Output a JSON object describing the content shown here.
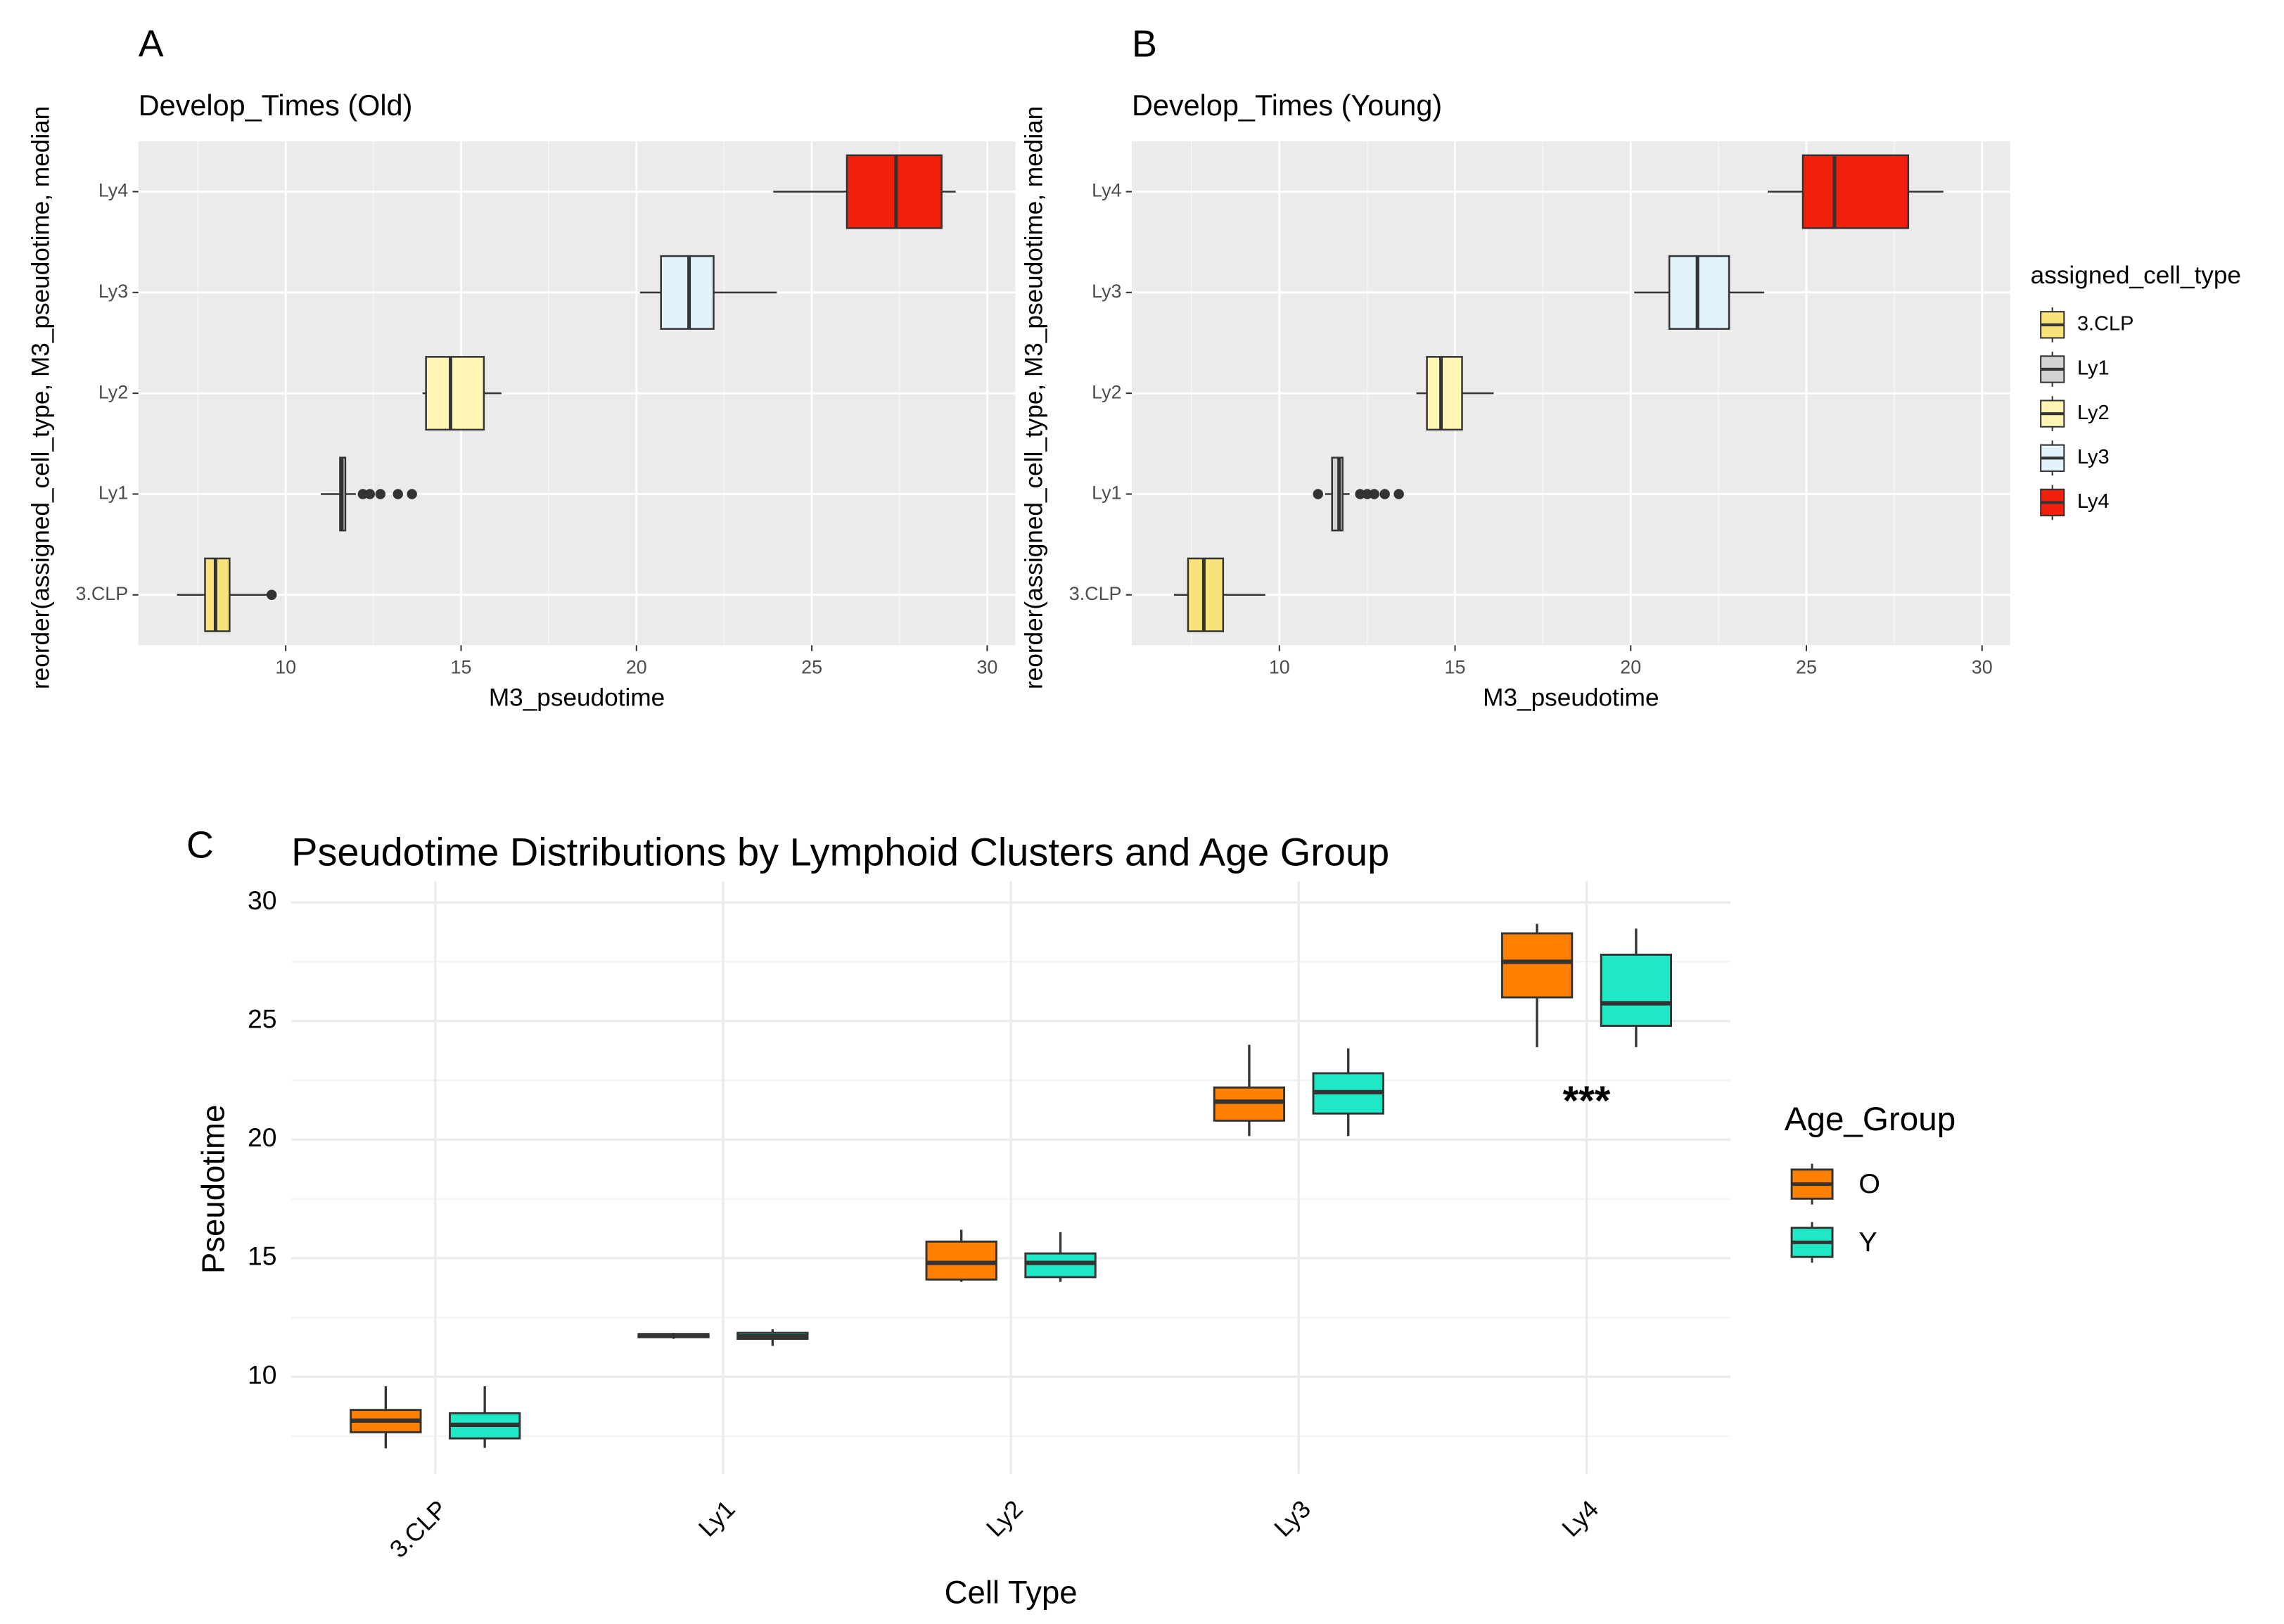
{
  "chart_data": [
    {
      "type": "hbox",
      "letter": "A",
      "title": "Develop_Times (Old)",
      "xlabel": "M3_pseudotime",
      "ylabel": "reorder(assigned_cell_type, M3_pseudotime, median",
      "categories": [
        "3.CLP",
        "Ly1",
        "Ly2",
        "Ly3",
        "Ly4"
      ],
      "colors": [
        "#f9e27a",
        "#d3d3d3",
        "#fff6b5",
        "#e2f3fa",
        "#f21f0c"
      ],
      "whisker_low": [
        6.9,
        11.0,
        13.9,
        20.1,
        23.9
      ],
      "q1": [
        7.7,
        11.55,
        14.0,
        20.7,
        26.0
      ],
      "median": [
        8.0,
        11.6,
        14.7,
        21.5,
        27.4
      ],
      "q3": [
        8.4,
        11.7,
        15.65,
        22.2,
        28.7
      ],
      "whisker_high": [
        9.5,
        12.0,
        16.15,
        24.0,
        29.1
      ],
      "outliers": [
        [
          9.6
        ],
        [
          12.2,
          12.4,
          12.7,
          13.2,
          13.6
        ],
        [],
        [],
        []
      ],
      "xlim": [
        5.8,
        30.8
      ],
      "xticks": [
        10,
        15,
        20,
        25,
        30
      ],
      "xminor": [
        7.5,
        12.5,
        17.5,
        22.5,
        27.5
      ],
      "grid": true
    },
    {
      "type": "hbox",
      "letter": "B",
      "title": "Develop_Times (Young)",
      "xlabel": "M3_pseudotime",
      "ylabel": "reorder(assigned_cell_type, M3_pseudotime, median",
      "legend_title": "assigned_cell_type",
      "categories": [
        "3.CLP",
        "Ly1",
        "Ly2",
        "Ly3",
        "Ly4"
      ],
      "colors": [
        "#f9e27a",
        "#d3d3d3",
        "#fff6b5",
        "#e2f3fa",
        "#f21f0c"
      ],
      "whisker_low": [
        7.0,
        11.3,
        13.9,
        20.1,
        23.9
      ],
      "q1": [
        7.4,
        11.5,
        14.2,
        21.1,
        24.9
      ],
      "median": [
        7.85,
        11.7,
        14.6,
        21.9,
        25.8
      ],
      "q3": [
        8.4,
        11.8,
        15.2,
        22.8,
        27.9
      ],
      "whisker_high": [
        9.6,
        12.0,
        16.1,
        23.8,
        28.9
      ],
      "outliers": [
        [],
        [
          11.1,
          12.3,
          12.5,
          12.7,
          13.0,
          13.4
        ],
        [],
        [],
        []
      ],
      "xlim": [
        5.8,
        30.8
      ],
      "xticks": [
        10,
        15,
        20,
        25,
        30
      ],
      "xminor": [
        7.5,
        12.5,
        17.5,
        22.5,
        27.5
      ],
      "grid": true
    },
    {
      "type": "vbox",
      "letter": "C",
      "title": "Pseudotime Distributions by Lymphoid Clusters and Age Group",
      "xlabel": "Cell Type",
      "ylabel": "Pseudotime",
      "legend_title": "Age_Group",
      "annotation": "***",
      "annotation_category": 4,
      "annotation_y": 21.5,
      "categories": [
        "3.CLP",
        "Ly1",
        "Ly2",
        "Ly3",
        "Ly4"
      ],
      "series": [
        {
          "name": "O",
          "color": "#ff8000",
          "whisker_low": [
            6.98,
            11.6,
            14.0,
            20.15,
            23.9
          ],
          "q1": [
            7.66,
            11.67,
            14.1,
            20.8,
            26.0
          ],
          "median": [
            8.15,
            11.75,
            14.8,
            21.6,
            27.5
          ],
          "q3": [
            8.6,
            11.8,
            15.7,
            22.2,
            28.7
          ],
          "whisker_high": [
            9.6,
            11.85,
            16.2,
            24.0,
            29.1
          ]
        },
        {
          "name": "Y",
          "color": "#1ee8c6",
          "whisker_low": [
            7.0,
            11.3,
            14.0,
            20.15,
            23.9
          ],
          "q1": [
            7.4,
            11.6,
            14.2,
            21.1,
            24.8
          ],
          "median": [
            7.97,
            11.7,
            14.8,
            22.0,
            25.75
          ],
          "q3": [
            8.46,
            11.85,
            15.2,
            22.8,
            27.8
          ],
          "whisker_high": [
            9.6,
            12.0,
            16.1,
            23.85,
            28.9
          ]
        }
      ],
      "ylim": [
        5.9,
        30.9
      ],
      "yticks": [
        10,
        15,
        20,
        25,
        30
      ],
      "yminor": [
        7.5,
        12.5,
        17.5,
        22.5,
        27.5
      ],
      "grid": true
    }
  ]
}
